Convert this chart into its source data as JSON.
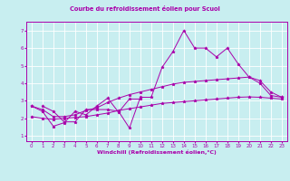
{
  "title": "Courbe du refroidissement éolien pour Scuol",
  "xlabel": "Windchill (Refroidissement éolien,°C)",
  "bg_color": "#c8eef0",
  "line_color": "#aa00aa",
  "grid_color": "#ffffff",
  "xlim": [
    -0.5,
    23.5
  ],
  "ylim": [
    0.7,
    7.5
  ],
  "xticks": [
    0,
    1,
    2,
    3,
    4,
    5,
    6,
    7,
    8,
    9,
    10,
    11,
    12,
    13,
    14,
    15,
    16,
    17,
    18,
    19,
    20,
    21,
    22,
    23
  ],
  "yticks": [
    1,
    2,
    3,
    4,
    5,
    6,
    7
  ],
  "series0_x": [
    1,
    2,
    3,
    4,
    5,
    6,
    7,
    8,
    9,
    10,
    11,
    12,
    13,
    14,
    15,
    16,
    17,
    18,
    19,
    20,
    21,
    22,
    23
  ],
  "series0_y": [
    2.7,
    2.4,
    1.8,
    1.8,
    2.5,
    2.5,
    2.5,
    2.4,
    1.45,
    3.2,
    3.2,
    4.9,
    5.8,
    7.0,
    6.0,
    6.0,
    5.5,
    6.0,
    5.1,
    4.35,
    4.0,
    3.3,
    3.2
  ],
  "series1_x": [
    0,
    1,
    2,
    3,
    4,
    5,
    6,
    7,
    8,
    9,
    10
  ],
  "series1_y": [
    2.7,
    2.4,
    1.55,
    1.75,
    2.4,
    2.2,
    2.7,
    3.15,
    2.35,
    3.1,
    3.1
  ],
  "series2_x": [
    0,
    1,
    2,
    3,
    4,
    5,
    6,
    7,
    8,
    9,
    10,
    11,
    12,
    13,
    14,
    15,
    16,
    17,
    18,
    19,
    20,
    21,
    22,
    23
  ],
  "series2_y": [
    2.7,
    2.5,
    2.1,
    2.1,
    2.2,
    2.45,
    2.6,
    2.9,
    3.15,
    3.35,
    3.5,
    3.65,
    3.8,
    3.95,
    4.05,
    4.1,
    4.15,
    4.2,
    4.25,
    4.3,
    4.35,
    4.15,
    3.5,
    3.2
  ],
  "series3_x": [
    0,
    1,
    2,
    3,
    4,
    5,
    6,
    7,
    8,
    9,
    10,
    11,
    12,
    13,
    14,
    15,
    16,
    17,
    18,
    19,
    20,
    21,
    22,
    23
  ],
  "series3_y": [
    2.1,
    2.0,
    1.95,
    2.0,
    2.05,
    2.1,
    2.2,
    2.3,
    2.45,
    2.55,
    2.65,
    2.75,
    2.85,
    2.9,
    2.95,
    3.0,
    3.05,
    3.1,
    3.15,
    3.2,
    3.22,
    3.2,
    3.15,
    3.1
  ]
}
